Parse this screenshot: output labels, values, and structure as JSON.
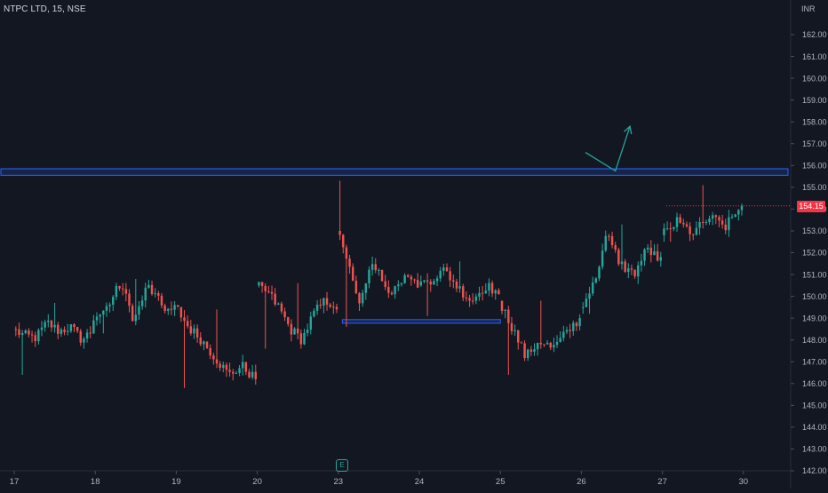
{
  "header": {
    "symbol": "NTPC LTD, 15, NSE",
    "currency": "INR"
  },
  "last_price": "154.15",
  "event_marker": {
    "label": "E",
    "icon": "earnings-icon"
  },
  "colors": {
    "background": "#131722",
    "grid": "#1e222d",
    "up": "#26a69a",
    "down": "#ef5350",
    "zone": "#2962ff",
    "arrow": "#26a69a",
    "last_price_tag": "#f23645"
  },
  "chart_data": {
    "type": "candlestick",
    "title": "",
    "xlabel": "",
    "ylabel": "",
    "ylim": [
      142,
      163.5
    ],
    "y_ticks": [
      142,
      143,
      144,
      145,
      146,
      147,
      148,
      149,
      150,
      151,
      152,
      153,
      154,
      155,
      156,
      157,
      158,
      159,
      160,
      161,
      162
    ],
    "y_tick_labels": [
      "142.00",
      "143.00",
      "144.00",
      "145.00",
      "146.00",
      "147.00",
      "148.00",
      "149.00",
      "150.00",
      "151.00",
      "152.00",
      "153.00",
      "154.00",
      "155.00",
      "156.00",
      "157.00",
      "158.00",
      "159.00",
      "160.00",
      "161.00",
      "162.00"
    ],
    "x_ticks": [
      "17",
      "18",
      "19",
      "20",
      "23",
      "24",
      "25",
      "26",
      "27",
      "30"
    ],
    "bars_per_day": 25,
    "days": [
      {
        "label": "17",
        "open": 148.5,
        "close": 148.9,
        "low": 146.4,
        "high": 149.7,
        "path": [
          148.2,
          148.1,
          148.8,
          148.4,
          148.6,
          148.0,
          148.5
        ]
      },
      {
        "label": "18",
        "open": 148.9,
        "close": 149.6,
        "low": 148.3,
        "high": 150.8,
        "path": [
          149.5,
          150.6,
          148.9,
          150.5,
          149.6,
          149.2
        ]
      },
      {
        "label": "19",
        "open": 149.6,
        "close": 146.2,
        "low": 145.8,
        "high": 149.4,
        "path": [
          148.6,
          148.0,
          147.2,
          146.4,
          146.8,
          146.2
        ]
      },
      {
        "label": "20",
        "open": 150.5,
        "close": 149.4,
        "low": 147.6,
        "high": 150.6,
        "path": [
          150.2,
          149.5,
          148.5,
          148.0,
          149.2,
          149.8,
          149.6
        ]
      },
      {
        "label": "23",
        "open": 153.0,
        "close": 150.4,
        "low": 148.6,
        "high": 155.3,
        "path": [
          151.5,
          149.5,
          151.8,
          150.6,
          150.2,
          150.8,
          150.5
        ]
      },
      {
        "label": "24",
        "open": 150.5,
        "close": 150.1,
        "low": 149.1,
        "high": 151.6,
        "path": [
          150.8,
          151.2,
          150.4,
          149.8,
          150.5,
          150.2
        ]
      },
      {
        "label": "25",
        "open": 149.8,
        "close": 149.0,
        "low": 146.4,
        "high": 149.8,
        "path": [
          148.6,
          147.2,
          148.0,
          147.6,
          148.3,
          149.0
        ]
      },
      {
        "label": "26",
        "open": 149.5,
        "close": 151.8,
        "low": 149.2,
        "high": 153.3,
        "path": [
          150.5,
          152.8,
          151.5,
          151.0,
          152.2,
          151.6
        ]
      },
      {
        "label": "27",
        "open": 152.8,
        "close": 154.15,
        "low": 152.5,
        "high": 155.1,
        "path": [
          153.4,
          152.9,
          153.6,
          153.2,
          154.15
        ]
      }
    ],
    "future_days": 3,
    "annotations": {
      "resistance_zone": {
        "from": 155.55,
        "to": 155.85,
        "x_start_day": 0,
        "x_end": "edge"
      },
      "support_zone": {
        "price": 148.85,
        "from_day": 4.05,
        "to_day": 6.0
      },
      "projection_arrow": {
        "points": [
          [
            7.05,
            156.6
          ],
          [
            7.42,
            155.75
          ],
          [
            7.6,
            157.8
          ]
        ]
      }
    }
  }
}
